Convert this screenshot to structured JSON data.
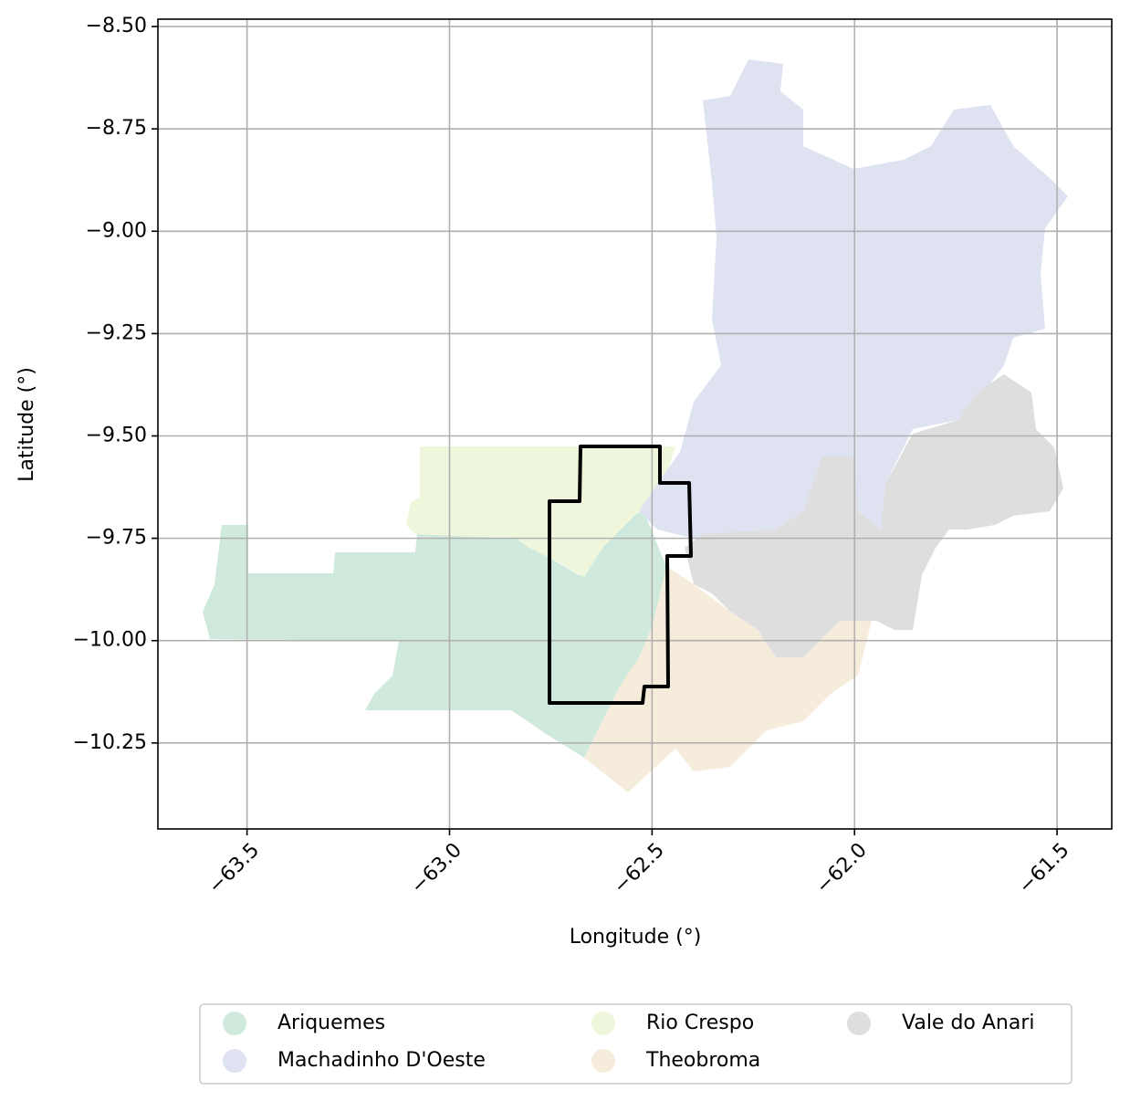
{
  "chart_data": {
    "type": "map",
    "xlabel": "Longitude (°)",
    "ylabel": "Latitude (°)",
    "xlim": [
      -63.72,
      -61.365
    ],
    "ylim": [
      -10.46,
      -8.482
    ],
    "xticks": [
      {
        "value": -63.5,
        "label": "−63.5"
      },
      {
        "value": -63.0,
        "label": "−63.0"
      },
      {
        "value": -62.5,
        "label": "−62.5"
      },
      {
        "value": -62.0,
        "label": "−62.0"
      },
      {
        "value": -61.5,
        "label": "−61.5"
      }
    ],
    "yticks": [
      {
        "value": -8.5,
        "label": "−8.50"
      },
      {
        "value": -8.75,
        "label": "−8.75"
      },
      {
        "value": -9.0,
        "label": "−9.00"
      },
      {
        "value": -9.25,
        "label": "−9.25"
      },
      {
        "value": -9.5,
        "label": "−9.50"
      },
      {
        "value": -9.75,
        "label": "−9.75"
      },
      {
        "value": -10.0,
        "label": "−10.00"
      },
      {
        "value": -10.25,
        "label": "−10.25"
      }
    ],
    "grid": true,
    "legend_position": "bottom",
    "legend_columns": 3,
    "series": [
      {
        "name": "Ariquemes",
        "color": "#cfeadc"
      },
      {
        "name": "Machadinho D'Oeste",
        "color": "#dfe3f1"
      },
      {
        "name": "Rio Crespo",
        "color": "#eef7dc"
      },
      {
        "name": "Theobroma",
        "color": "#f6ecdc"
      },
      {
        "name": "Vale do Anari",
        "color": "#dedede"
      }
    ]
  }
}
